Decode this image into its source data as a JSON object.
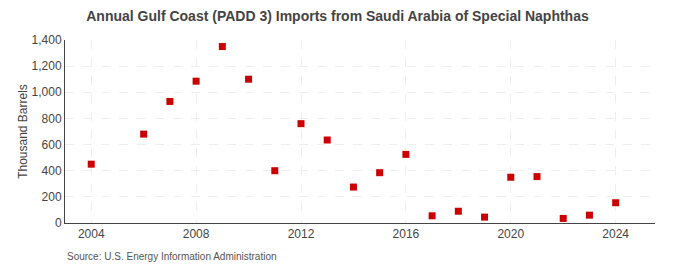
{
  "chart_data": {
    "type": "scatter",
    "title": "Annual Gulf Coast (PADD 3) Imports from Saudi Arabia of Special Naphthas",
    "ylabel": "Thousand Barrels",
    "annotations": [
      "Source: U.S. Energy Information Administration"
    ],
    "x": [
      2004,
      2006,
      2007,
      2008,
      2009,
      2010,
      2011,
      2012,
      2013,
      2014,
      2015,
      2016,
      2017,
      2018,
      2019,
      2020,
      2021,
      2022,
      2023,
      2024
    ],
    "values": [
      450,
      680,
      930,
      1085,
      1350,
      1100,
      400,
      760,
      635,
      275,
      385,
      525,
      55,
      90,
      45,
      350,
      355,
      35,
      60,
      155
    ],
    "color": "#cc0000",
    "marker": "square",
    "xlim": [
      2003,
      2025.5
    ],
    "xticks": [
      2004,
      2008,
      2012,
      2016,
      2020,
      2024
    ],
    "ylim": [
      0,
      1400
    ],
    "yticks": [
      0,
      200,
      400,
      600,
      800,
      {
        "value": 1000,
        "label": "1,000"
      },
      {
        "value": 1200,
        "label": "1,200"
      },
      {
        "value": 1400,
        "label": "1,400"
      }
    ],
    "grid": true
  }
}
